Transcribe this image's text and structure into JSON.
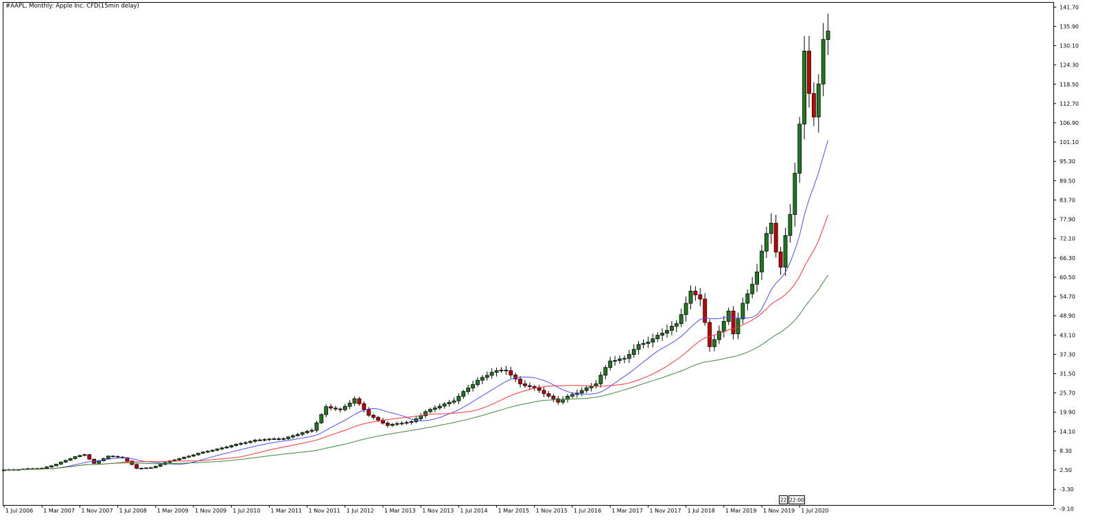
{
  "chart_data": {
    "type": "candlestick",
    "title": "#AAPL, Monthly:  Apple Inc. CFD(15min delay)",
    "timeframe": "Monthly",
    "y_axis": {
      "range": [
        -8.0,
        143.0
      ],
      "tick_labels": [
        "141.70",
        "135.90",
        "130.10",
        "124.30",
        "118.50",
        "112.70",
        "106.90",
        "101.10",
        "95.30",
        "89.50",
        "83.70",
        "77.90",
        "72.10",
        "66.30",
        "60.50",
        "54.70",
        "48.90",
        "43.10",
        "37.30",
        "31.50",
        "25.70",
        "19.90",
        "14.10",
        "8.30",
        "2.50",
        "-3.30",
        "-9.10"
      ]
    },
    "x_axis": {
      "tick_labels": [
        "1 Jul 2006",
        "1 Mar 2007",
        "1 Nov 2007",
        "1 Jul 2008",
        "1 Mar 2009",
        "1 Nov 2009",
        "1 Jul 2010",
        "1 Mar 2011",
        "1 Nov 2011",
        "1 Jul 2012",
        "1 Mar 2013",
        "1 Nov 2013",
        "1 Jul 2014",
        "1 Mar 2015",
        "1 Nov 2015",
        "1 Jul 2016",
        "1 Mar 2017",
        "1 Nov 2017",
        "1 Jul 2018",
        "1 Mar 2019",
        "1 Nov 2019",
        "1 Jul 2020"
      ],
      "start_month": "2006-07",
      "bar_count": 175
    },
    "anchors": [
      [
        "2006-07",
        2.5
      ],
      [
        "2006-12",
        2.9
      ],
      [
        "2007-03",
        3.0
      ],
      [
        "2007-06",
        4.3
      ],
      [
        "2007-10",
        6.5
      ],
      [
        "2007-12",
        7.2
      ],
      [
        "2008-02",
        4.5
      ],
      [
        "2008-05",
        6.7
      ],
      [
        "2008-08",
        6.3
      ],
      [
        "2008-11",
        3.0
      ],
      [
        "2009-02",
        3.2
      ],
      [
        "2009-06",
        5.2
      ],
      [
        "2009-12",
        7.5
      ],
      [
        "2010-06",
        9.5
      ],
      [
        "2010-12",
        11.5
      ],
      [
        "2011-06",
        12.0
      ],
      [
        "2011-12",
        14.5
      ],
      [
        "2012-03",
        21.5
      ],
      [
        "2012-06",
        20.5
      ],
      [
        "2012-09",
        24.0
      ],
      [
        "2012-12",
        19.0
      ],
      [
        "2013-04",
        16.0
      ],
      [
        "2013-09",
        17.0
      ],
      [
        "2013-12",
        20.0
      ],
      [
        "2014-06",
        23.5
      ],
      [
        "2014-11",
        29.5
      ],
      [
        "2015-02",
        32.0
      ],
      [
        "2015-05",
        32.5
      ],
      [
        "2015-08",
        28.5
      ],
      [
        "2015-12",
        26.5
      ],
      [
        "2016-04",
        23.0
      ],
      [
        "2016-06",
        24.5
      ],
      [
        "2016-12",
        28.5
      ],
      [
        "2017-03",
        35.5
      ],
      [
        "2017-06",
        36.0
      ],
      [
        "2017-09",
        40.0
      ],
      [
        "2017-12",
        42.0
      ],
      [
        "2018-03",
        44.5
      ],
      [
        "2018-05",
        46.5
      ],
      [
        "2018-08",
        56.0
      ],
      [
        "2018-10",
        54.0
      ],
      [
        "2018-12",
        39.5
      ],
      [
        "2019-03",
        47.0
      ],
      [
        "2019-04",
        50.0
      ],
      [
        "2019-05",
        43.5
      ],
      [
        "2019-07",
        52.5
      ],
      [
        "2019-10",
        62.0
      ],
      [
        "2019-12",
        73.5
      ],
      [
        "2020-01",
        77.0
      ],
      [
        "2020-02",
        68.0
      ],
      [
        "2020-03",
        63.5
      ],
      [
        "2020-04",
        73.5
      ],
      [
        "2020-05",
        79.5
      ],
      [
        "2020-06",
        91.0
      ],
      [
        "2020-07",
        106.0
      ],
      [
        "2020-08",
        129.0
      ],
      [
        "2020-09",
        116.0
      ],
      [
        "2020-10",
        108.5
      ],
      [
        "2020-11",
        119.0
      ],
      [
        "2020-12",
        132.5
      ],
      [
        "2021-01",
        134.5
      ]
    ],
    "series": [
      {
        "type": "candlestick",
        "up_color": "#1e7a1e",
        "down_color": "#cc0000"
      },
      {
        "type": "line",
        "role": "moving-average",
        "period": 12,
        "color": "#4b4bff"
      },
      {
        "type": "line",
        "role": "moving-average",
        "period": 24,
        "color": "#ff3030"
      },
      {
        "type": "line",
        "role": "moving-average",
        "period": 48,
        "color": "#3a8a3a"
      }
    ],
    "grid": false,
    "legend": "none"
  },
  "status": {
    "box1": "22",
    "box2": "22:00"
  }
}
